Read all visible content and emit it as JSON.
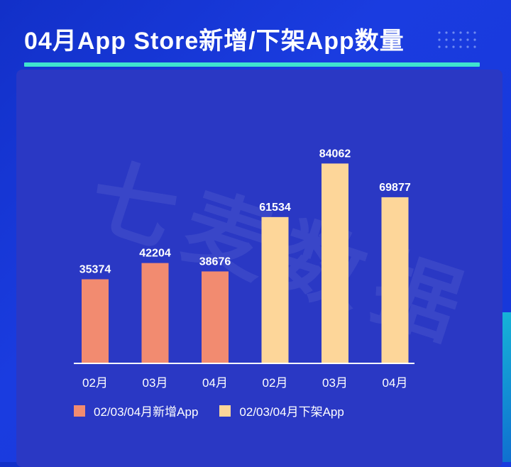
{
  "header": {
    "title": "04月App Store新增/下架App数量"
  },
  "watermark": "七麦数据",
  "colors": {
    "new": "#f28b70",
    "removed": "#fdd699",
    "label": "#ffffff",
    "axis": "#ffffff"
  },
  "chart_data": {
    "type": "bar",
    "title": "04月App Store新增/下架App数量",
    "categories": [
      "02月",
      "03月",
      "04月",
      "02月",
      "03月",
      "04月"
    ],
    "series": [
      {
        "name": "02/03/04月新增App",
        "values": [
          35374,
          42204,
          38676,
          null,
          null,
          null
        ]
      },
      {
        "name": "02/03/04月下架App",
        "values": [
          null,
          null,
          null,
          61534,
          84062,
          69877
        ]
      }
    ],
    "ylim": [
      0,
      100000
    ],
    "grid": false,
    "legend_position": "bottom"
  }
}
